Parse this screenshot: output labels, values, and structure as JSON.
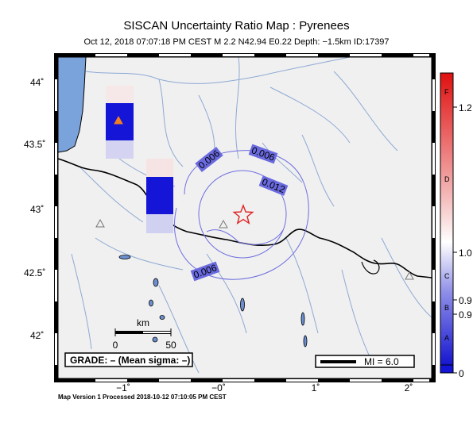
{
  "title": "SISCAN Uncertainty Ratio Map : Pyrenees",
  "subtitle": "Oct 12, 2018 07:07:18 PM CEST   M 2.2   N42.94 E0.22   Depth: −1.5km   ID:17397",
  "footer": "Map Version 1 Processed 2018-10-12 07:10:05 PM CEST",
  "axes": {
    "x_ticks": [
      "−1˚",
      "−0˚",
      "1˚",
      "2˚"
    ],
    "y_ticks": [
      "44˚",
      "43.5˚",
      "43˚",
      "42.5˚",
      "42˚"
    ]
  },
  "contours": [
    "0.006",
    "0.006",
    "0.006",
    "0.012",
    "0.006"
  ],
  "scale_bar": {
    "unit": "km",
    "start": "0",
    "end": "50"
  },
  "grade": "GRADE: – (Mean sigma: –)",
  "mi_legend": "MI = 6.0",
  "colorbar": {
    "right_labels": [
      "1.2",
      "1.0",
      "0.9",
      "0.9",
      "0"
    ],
    "inner_labels": [
      "F",
      "D",
      "C",
      "B",
      "A"
    ]
  },
  "colors": {
    "land": "#f0f0f0",
    "sea": "#7ba3db",
    "rivers": "#8ea9d4",
    "contour": "#6f6fe0",
    "epicenter": "#e02020",
    "high_cell": "#1515d8"
  }
}
